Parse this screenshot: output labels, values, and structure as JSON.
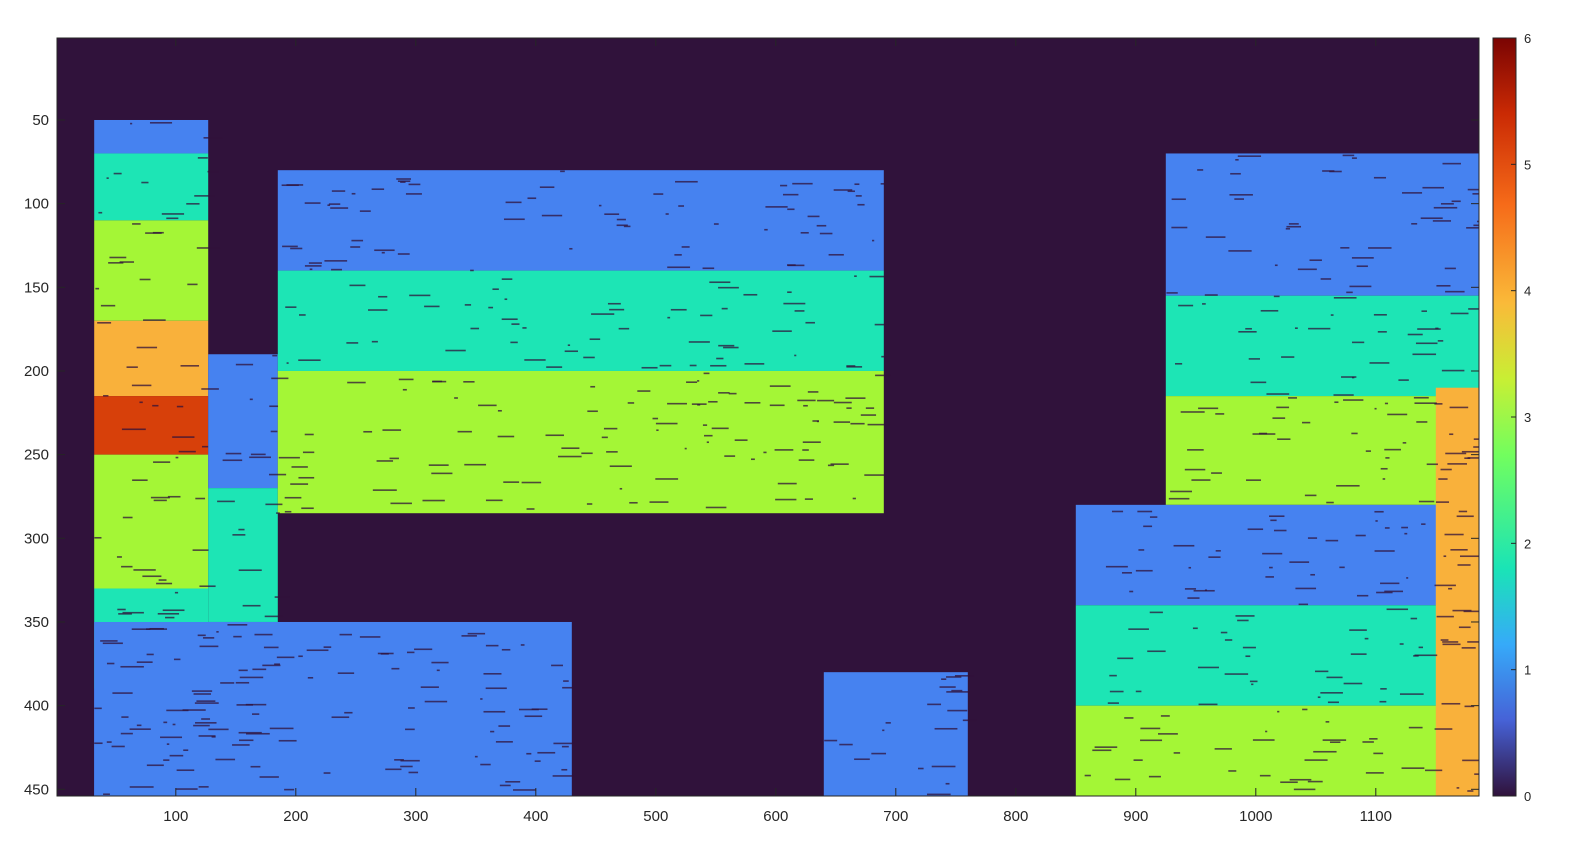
{
  "chart_data": {
    "type": "heatmap",
    "title": "",
    "xlabel": "",
    "ylabel": "",
    "xlim": [
      1,
      1186
    ],
    "ylim": [
      1,
      454
    ],
    "y_reversed": true,
    "xticks": [
      100,
      200,
      300,
      400,
      500,
      600,
      700,
      800,
      900,
      1000,
      1100
    ],
    "yticks": [
      50,
      100,
      150,
      200,
      250,
      300,
      350,
      400,
      450
    ],
    "colorbar": {
      "colormap": "turbo",
      "clim": [
        0,
        6
      ],
      "ticks": [
        0,
        1,
        2,
        3,
        4,
        5,
        6
      ],
      "position": "right"
    },
    "grid": false,
    "levels": {
      "background": 0,
      "blue": 1,
      "teal": 2,
      "lime": 3,
      "orange": 4,
      "red": 5
    },
    "regions": [
      {
        "name": "left-strip",
        "x": [
          32,
          127
        ],
        "y": [
          50,
          454
        ],
        "bands": [
          [
            50,
            70,
            1
          ],
          [
            70,
            110,
            2
          ],
          [
            110,
            170,
            3
          ],
          [
            170,
            215,
            4
          ],
          [
            215,
            250,
            5
          ],
          [
            250,
            330,
            3
          ],
          [
            330,
            390,
            2
          ],
          [
            390,
            454,
            1
          ]
        ]
      },
      {
        "name": "narrow-column",
        "x": [
          127,
          185
        ],
        "y": [
          190,
          454
        ],
        "bands": [
          [
            190,
            270,
            1
          ],
          [
            270,
            350,
            2
          ],
          [
            350,
            454,
            1
          ]
        ]
      },
      {
        "name": "center-wall",
        "x": [
          185,
          690
        ],
        "y": [
          80,
          285
        ],
        "bands": [
          [
            80,
            140,
            1
          ],
          [
            140,
            200,
            2
          ],
          [
            200,
            285,
            3
          ]
        ]
      },
      {
        "name": "right-wall",
        "x": [
          925,
          1186
        ],
        "y": [
          70,
          280
        ],
        "bands": [
          [
            70,
            155,
            1
          ],
          [
            155,
            215,
            2
          ],
          [
            215,
            280,
            3
          ]
        ]
      },
      {
        "name": "floor-left",
        "x": [
          32,
          430
        ],
        "y": [
          350,
          454
        ],
        "bands": [
          [
            350,
            454,
            1
          ]
        ]
      },
      {
        "name": "floor-center",
        "x": [
          640,
          760
        ],
        "y": [
          380,
          454
        ],
        "bands": [
          [
            380,
            454,
            1
          ]
        ]
      },
      {
        "name": "floor-right",
        "x": [
          850,
          1186
        ],
        "y": [
          280,
          454
        ],
        "bands": [
          [
            280,
            340,
            1
          ],
          [
            340,
            400,
            2
          ],
          [
            400,
            454,
            3
          ]
        ]
      },
      {
        "name": "right-edge",
        "x": [
          1150,
          1186
        ],
        "y": [
          210,
          454
        ],
        "bands": [
          [
            210,
            454,
            4
          ]
        ]
      }
    ]
  }
}
